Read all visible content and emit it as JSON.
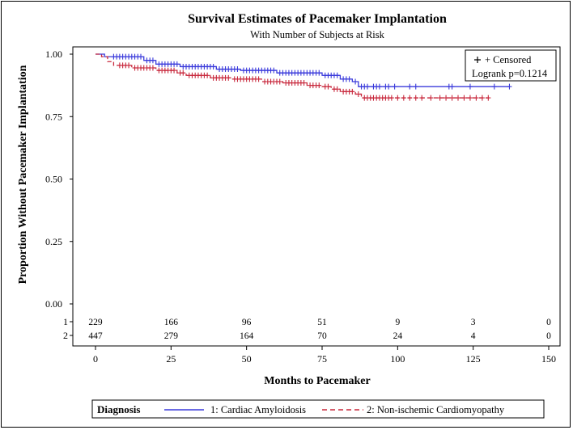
{
  "chart_data": {
    "type": "line",
    "title": "Survival Estimates of Pacemaker Implantation",
    "subtitle": "With Number of Subjects at Risk",
    "xlabel": "Months to Pacemaker",
    "ylabel": "Proportion Without Pacemaker Implantation",
    "xlim": [
      0,
      150
    ],
    "ylim": [
      0.0,
      1.0
    ],
    "x_ticks": [
      0,
      25,
      50,
      75,
      100,
      125,
      150
    ],
    "y_ticks": [
      0.0,
      0.25,
      0.5,
      0.75,
      1.0
    ],
    "x_tick_labels": [
      "0",
      "25",
      "50",
      "75",
      "100",
      "125",
      "150"
    ],
    "y_tick_labels": [
      "0.00",
      "0.25",
      "0.50",
      "0.75",
      "1.00"
    ],
    "grid": false,
    "inset": {
      "censored_label": "+ Censored",
      "logrank_label": "Logrank p=0.1214"
    },
    "legend": {
      "title": "Diagnosis",
      "placement": "bottom"
    },
    "series": [
      {
        "name": "1: Cardiac Amyloidosis",
        "risk_label": "1",
        "color": "#3a3adb",
        "dash": "solid",
        "steps": [
          [
            0,
            1.0
          ],
          [
            3,
            0.99
          ],
          [
            16,
            0.975
          ],
          [
            20,
            0.96
          ],
          [
            28,
            0.95
          ],
          [
            40,
            0.94
          ],
          [
            48,
            0.935
          ],
          [
            60,
            0.925
          ],
          [
            75,
            0.915
          ],
          [
            81,
            0.9
          ],
          [
            85,
            0.89
          ],
          [
            87,
            0.87
          ],
          [
            137,
            0.87
          ]
        ],
        "censored": [
          6,
          7,
          8,
          9,
          10,
          11,
          12,
          13,
          14,
          15,
          17,
          18,
          19,
          21,
          22,
          23,
          24,
          25,
          26,
          27,
          29,
          30,
          31,
          32,
          33,
          34,
          35,
          36,
          37,
          38,
          39,
          41,
          42,
          43,
          44,
          45,
          46,
          47,
          49,
          50,
          51,
          52,
          53,
          54,
          55,
          56,
          57,
          58,
          59,
          61,
          62,
          63,
          64,
          65,
          66,
          67,
          68,
          69,
          70,
          71,
          72,
          73,
          74,
          76,
          77,
          78,
          79,
          80,
          82,
          83,
          84,
          86,
          88,
          89,
          90,
          92,
          93,
          94,
          96,
          97,
          99,
          104,
          106,
          117,
          118,
          124,
          132,
          137
        ]
      },
      {
        "name": "2: Non-ischemic Cardiomyopathy",
        "risk_label": "2",
        "color": "#c8283c",
        "dash": "dashed",
        "steps": [
          [
            0,
            1.0
          ],
          [
            2,
            0.99
          ],
          [
            4,
            0.97
          ],
          [
            6,
            0.955
          ],
          [
            12,
            0.945
          ],
          [
            20,
            0.935
          ],
          [
            27,
            0.925
          ],
          [
            30,
            0.915
          ],
          [
            38,
            0.905
          ],
          [
            45,
            0.9
          ],
          [
            55,
            0.89
          ],
          [
            62,
            0.885
          ],
          [
            70,
            0.875
          ],
          [
            75,
            0.87
          ],
          [
            78,
            0.86
          ],
          [
            81,
            0.85
          ],
          [
            86,
            0.84
          ],
          [
            88,
            0.825
          ],
          [
            130,
            0.825
          ]
        ],
        "censored": [
          8,
          9,
          10,
          11,
          13,
          14,
          15,
          16,
          17,
          18,
          19,
          21,
          22,
          23,
          24,
          25,
          26,
          28,
          29,
          31,
          32,
          33,
          34,
          35,
          36,
          37,
          39,
          40,
          41,
          42,
          43,
          44,
          46,
          47,
          48,
          49,
          50,
          51,
          52,
          53,
          54,
          56,
          57,
          58,
          59,
          60,
          61,
          63,
          64,
          65,
          66,
          67,
          68,
          69,
          71,
          72,
          73,
          74,
          76,
          77,
          79,
          80,
          82,
          83,
          84,
          85,
          87,
          89,
          90,
          91,
          92,
          93,
          94,
          95,
          96,
          97,
          98,
          100,
          102,
          104,
          106,
          108,
          111,
          114,
          116,
          118,
          120,
          122,
          124,
          126,
          128,
          130
        ]
      }
    ],
    "at_risk": {
      "x": [
        0,
        25,
        50,
        75,
        100,
        125,
        150
      ],
      "rows": [
        {
          "label": "1",
          "counts": [
            "229",
            "166",
            "96",
            "51",
            "9",
            "3",
            "0"
          ]
        },
        {
          "label": "2",
          "counts": [
            "447",
            "279",
            "164",
            "70",
            "24",
            "4",
            "0"
          ]
        }
      ]
    }
  }
}
